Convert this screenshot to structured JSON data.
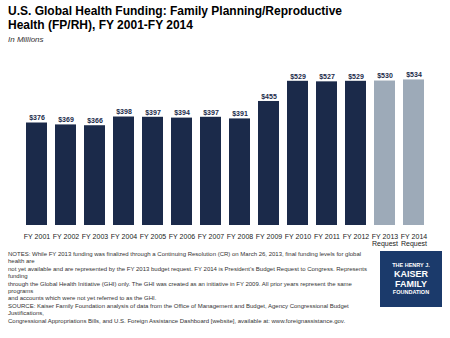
{
  "chart_data": {
    "type": "bar",
    "title": "U.S. Global Health Funding: Family Planning/Reproductive\nHealth (FP/RH), FY 2001-FY 2014",
    "subtitle": "In Millions",
    "categories": [
      "FY 2001",
      "FY 2002",
      "FY 2003",
      "FY 2004",
      "FY 2005",
      "FY 2006",
      "FY 2007",
      "FY 2008",
      "FY 2009",
      "FY 2010",
      "FY 2011",
      "FY 2012",
      "FY 2013\nRequest",
      "FY 2014\nRequest"
    ],
    "values": [
      376,
      369,
      366,
      398,
      397,
      394,
      397,
      391,
      455,
      529,
      527,
      529,
      530,
      534
    ],
    "value_labels": [
      "$376",
      "$369",
      "$366",
      "$398",
      "$397",
      "$394",
      "$397",
      "$391",
      "$455",
      "$529",
      "$527",
      "$529",
      "$530",
      "$534"
    ],
    "colors": [
      "#1b2a4a",
      "#1b2a4a",
      "#1b2a4a",
      "#1b2a4a",
      "#1b2a4a",
      "#1b2a4a",
      "#1b2a4a",
      "#1b2a4a",
      "#1b2a4a",
      "#1b2a4a",
      "#1b2a4a",
      "#1b2a4a",
      "#9daab8",
      "#9daab8"
    ],
    "ylim": [
      0,
      620
    ],
    "yticks": [],
    "grid": false,
    "data_labels": true,
    "tick_labels": "x",
    "annotations": [
      "NOTES: While FY 2013 funding was finalized through a Continuing Resolution (CR) on March 26, 2013, final funding levels for global health are\nnot yet available and are represented by the FY 2013 budget request. FY 2014 is President’s Budget Request to Congress. Represents funding\nthrough the Global Health Initiative (GHI) only. The GHI was created as an initiative in FY 2009.  All prior years represent the same programs\nand accounts which were not yet referred to as the GHI.\nSOURCE: Kaiser Family Foundation analysis of data from the Office of Management and Budget, Agency Congressional Budget Justifications,\nCongressional Appropriations Bills, and U.S. Foreign Assistance Dashboard [website], available at: www.foreignassistance.gov.",
      "THE HENRY J.\nKAISER\nFAMILY\nFOUNDATION"
    ]
  }
}
